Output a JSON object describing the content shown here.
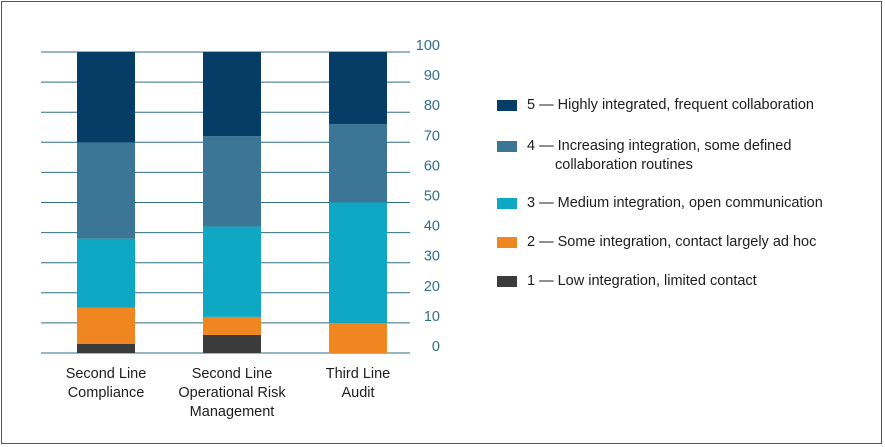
{
  "chart_data": {
    "type": "bar",
    "stacked": true,
    "categories": [
      "Second Line\nCompliance",
      "Second Line\nOperational Risk\nManagement",
      "Third Line\nAudit"
    ],
    "series": [
      {
        "name": "1 — Low integration, limited contact",
        "color": "#3b3b3b",
        "values": [
          3,
          6,
          0
        ]
      },
      {
        "name": "2 — Some integration, contact largely ad hoc",
        "color": "#f0861f",
        "values": [
          12,
          6,
          10
        ]
      },
      {
        "name": "3 — Medium integration, open communication",
        "color": "#0ea8c4",
        "values": [
          23,
          30,
          40
        ]
      },
      {
        "name": "4 — Increasing integration, some defined collaboration routines",
        "color": "#3c7696",
        "values": [
          32,
          30,
          26
        ]
      },
      {
        "name": "5 — Highly integrated, frequent collaboration",
        "color": "#053d67",
        "values": [
          30,
          28,
          24
        ]
      }
    ],
    "legend": [
      {
        "line1": "5 — Highly integrated, frequent collaboration",
        "line2": "",
        "color": "#053d67"
      },
      {
        "line1": "4 — Increasing integration, some defined",
        "line2": "collaboration routines",
        "color": "#3c7696"
      },
      {
        "line1": "3 — Medium integration, open communication",
        "line2": "",
        "color": "#0ea8c4"
      },
      {
        "line1": "2 — Some integration, contact largely ad hoc",
        "line2": "",
        "color": "#f0861f"
      },
      {
        "line1": "1 — Low integration, limited contact",
        "line2": "",
        "color": "#3b3b3b"
      }
    ],
    "yticks": [
      "0",
      "10",
      "20",
      "30",
      "40",
      "50",
      "60",
      "70",
      "80",
      "90",
      "100"
    ],
    "ylim": [
      0,
      100
    ],
    "y_axis_side": "right",
    "grid": true,
    "legend_position": "right",
    "tick_color": "#2f6f87",
    "grid_color": "#2f6f87"
  }
}
